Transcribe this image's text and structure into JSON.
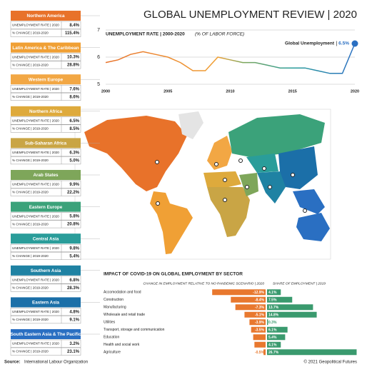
{
  "title": "GLOBAL UNEMPLOYMENT REVIEW | 2020",
  "regions": [
    {
      "name": "Northern America",
      "color": "#e8722a",
      "rows": [
        {
          "label": "UNEMPLOYMENT RATE | 2020",
          "value": "8.4%"
        },
        {
          "label": "% CHANGE | 2019-2020",
          "value": "115.4%"
        }
      ]
    },
    {
      "name": "Latin America & The Caribbean",
      "color": "#f0a035",
      "rows": [
        {
          "label": "UNEMPLOYMENT RATE | 2020",
          "value": "10.3%"
        },
        {
          "label": "% CHANGE | 2019-2020",
          "value": "28.8%"
        }
      ]
    },
    {
      "name": "Western Europe",
      "color": "#f2a744",
      "rows": [
        {
          "label": "UNEMPLOYMENT RATE | 2020",
          "value": "7.6%"
        },
        {
          "label": "% CHANGE | 2019-2020",
          "value": "8.6%"
        }
      ]
    },
    {
      "name": "Northern Africa",
      "color": "#deaa3c",
      "rows": [
        {
          "label": "UNEMPLOYMENT RATE | 2020",
          "value": "6.5%"
        },
        {
          "label": "% CHANGE | 2019-2020",
          "value": "8.5%"
        }
      ]
    },
    {
      "name": "Sub-Saharan Africa",
      "color": "#c9a545",
      "rows": [
        {
          "label": "UNEMPLOYMENT RATE | 2020",
          "value": "6.3%"
        },
        {
          "label": "% CHANGE | 2019-2020",
          "value": "5.0%"
        }
      ]
    },
    {
      "name": "Arab States",
      "color": "#7ea65a",
      "rows": [
        {
          "label": "UNEMPLOYMENT RATE | 2020",
          "value": "9.9%"
        },
        {
          "label": "% CHANGE | 2019-2020",
          "value": "22.2%"
        }
      ]
    },
    {
      "name": "Eastern Europe",
      "color": "#3ba27a",
      "rows": [
        {
          "label": "UNEMPLOYMENT RATE | 2020",
          "value": "5.8%"
        },
        {
          "label": "% CHANGE | 2019-2020",
          "value": "20.8%"
        }
      ]
    },
    {
      "name": "Central Asia",
      "color": "#2a9d9a",
      "rows": [
        {
          "label": "UNEMPLOYMENT RATE | 2020",
          "value": "9.8%"
        },
        {
          "label": "% CHANGE | 2019-2020",
          "value": "5.4%"
        }
      ]
    },
    {
      "name": "Southern Asia",
      "color": "#1f82a3",
      "rows": [
        {
          "label": "UNEMPLOYMENT RATE | 2020",
          "value": "6.8%"
        },
        {
          "label": "% CHANGE | 2019-2020",
          "value": "28.3%"
        }
      ]
    },
    {
      "name": "Eastern Asia",
      "color": "#1b6fa8",
      "rows": [
        {
          "label": "UNEMPLOYMENT RATE | 2020",
          "value": "4.8%"
        },
        {
          "label": "% CHANGE | 2019-2020",
          "value": "9.1%"
        }
      ]
    },
    {
      "name": "South Eastern Asia & The Pacific",
      "color": "#2a6fc2",
      "rows": [
        {
          "label": "UNEMPLOYMENT RATE | 2020",
          "value": "3.2%"
        },
        {
          "label": "% CHANGE | 2019-2020",
          "value": "23.1%"
        }
      ]
    }
  ],
  "chart_data": [
    {
      "type": "line",
      "title": "UNEMPLOYMENT RATE | 2000-2020",
      "subtitle": "(% OF LABOR FORCE)",
      "x": [
        2000,
        2001,
        2002,
        2003,
        2004,
        2005,
        2006,
        2007,
        2008,
        2009,
        2010,
        2011,
        2012,
        2013,
        2014,
        2015,
        2016,
        2017,
        2018,
        2019,
        2020
      ],
      "xlim": [
        2000,
        2020
      ],
      "xticks": [
        2000,
        2005,
        2010,
        2015,
        2020
      ],
      "ylim": [
        5,
        7
      ],
      "yticks": [
        5,
        6,
        7
      ],
      "grid": true,
      "series": [
        {
          "name": "Global Unemployment",
          "color": "#2a6fc2",
          "values": [
            5.8,
            5.9,
            6.1,
            6.2,
            6.1,
            6.0,
            5.8,
            5.5,
            5.5,
            6.0,
            5.9,
            5.8,
            5.8,
            5.7,
            5.6,
            5.6,
            5.6,
            5.5,
            5.4,
            5.4,
            6.5
          ],
          "value_labels": [
            null,
            null,
            null,
            null,
            null,
            null,
            null,
            null,
            null,
            null,
            null,
            null,
            null,
            null,
            null,
            null,
            null,
            null,
            null,
            null,
            "6.5%"
          ]
        }
      ]
    },
    {
      "type": "bar",
      "title": "IMPACT OF COVID-19 ON GLOBAL EMPLOYMENT BY SECTOR",
      "categories": [
        "Accomodation and food",
        "Construction",
        "Manufacturing",
        "Wholesale and retail trade",
        "Utilities",
        "Transport, storage and communication",
        "Education",
        "Health and social work",
        "Agriculture"
      ],
      "series": [
        {
          "name": "CHANGE IN EMPLOYMENT RELATIVE TO NO PANDEMIC SCENARIO | 2020",
          "color": "#e8782e",
          "values": [
            -12.9,
            -8.4,
            -7.3,
            -5.1,
            -3.9,
            -3.5,
            -3.0,
            -2.7,
            -0.5
          ],
          "value_labels": [
            "-12.9%",
            "-8.4%",
            "-7.3%",
            "-5.1%",
            "-3.9%",
            "-3.5%",
            "-3.0%",
            "-2.7%",
            "-0.5%"
          ]
        },
        {
          "name": "SHARE OF EMPLOYMENT | 2019",
          "color": "#3a9a6e",
          "values": [
            4.1,
            7.5,
            13.7,
            14.8,
            0.3,
            6.1,
            5.4,
            4.1,
            26.7
          ],
          "value_labels": [
            "4.1%",
            "7.5%",
            "13.7%",
            "14.8%",
            "0.3%",
            "6.1%",
            "5.4%",
            "4.1%",
            "26.7%"
          ]
        }
      ]
    }
  ],
  "source_label": "Source:",
  "source": "International Labour Organization",
  "copyright": "© 2021 Geopolitical Futures"
}
